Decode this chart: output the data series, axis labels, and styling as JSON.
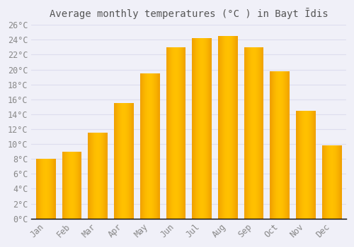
{
  "title": "Average monthly temperatures (°C ) in Bayt Īdis",
  "months": [
    "Jan",
    "Feb",
    "Mar",
    "Apr",
    "May",
    "Jun",
    "Jul",
    "Aug",
    "Sep",
    "Oct",
    "Nov",
    "Dec"
  ],
  "values": [
    8.0,
    9.0,
    11.5,
    15.5,
    19.5,
    23.0,
    24.2,
    24.5,
    23.0,
    19.8,
    14.5,
    9.8
  ],
  "bar_color_center": "#FFC020",
  "bar_color_edge": "#E08000",
  "background_color": "#F0F0F8",
  "grid_color": "#DDDDEE",
  "text_color": "#888888",
  "title_color": "#555555",
  "axis_line_color": "#000000",
  "ylim": [
    0,
    26
  ],
  "yticks": [
    0,
    2,
    4,
    6,
    8,
    10,
    12,
    14,
    16,
    18,
    20,
    22,
    24,
    26
  ],
  "title_fontsize": 10,
  "tick_fontsize": 8.5,
  "bar_width": 0.75
}
